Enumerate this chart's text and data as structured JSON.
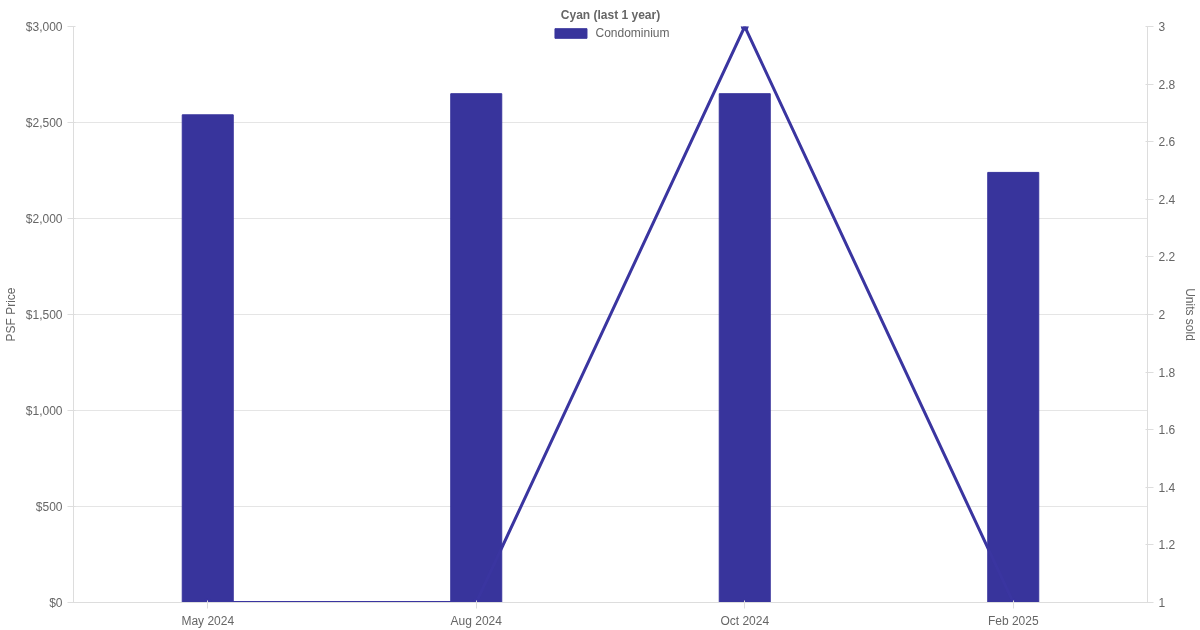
{
  "chart_data": {
    "type": "bar",
    "title": "Cyan (last 1 year)",
    "ylabel": "PSF Price",
    "y2label": "Units sold",
    "categories": [
      "May 2024",
      "Aug 2024",
      "Oct 2024",
      "Feb 2025"
    ],
    "series": [
      {
        "name": "Condominium",
        "color": "#38349c",
        "values": [
          2540,
          2650,
          2650,
          2240
        ]
      },
      {
        "type": "line",
        "axis": "y2",
        "color": "#3a35a0",
        "marker": "circle",
        "line_style": "solid",
        "values": [
          1,
          1,
          3,
          1
        ]
      }
    ],
    "ylim": [
      0,
      3000
    ],
    "yticks": [
      {
        "value": 0,
        "label": "$0"
      },
      {
        "value": 500,
        "label": "$500"
      },
      {
        "value": 1000,
        "label": "$1,000"
      },
      {
        "value": 1500,
        "label": "$1,500"
      },
      {
        "value": 2000,
        "label": "$2,000"
      },
      {
        "value": 2500,
        "label": "$2,500"
      },
      {
        "value": 3000,
        "label": "$3,000"
      }
    ],
    "y2lim": [
      1,
      3
    ],
    "y2ticks": [
      1,
      1.2,
      1.4,
      1.6,
      1.8,
      2,
      2.2,
      2.4,
      2.6,
      2.8,
      3
    ],
    "grid": "y",
    "legend": "top"
  }
}
